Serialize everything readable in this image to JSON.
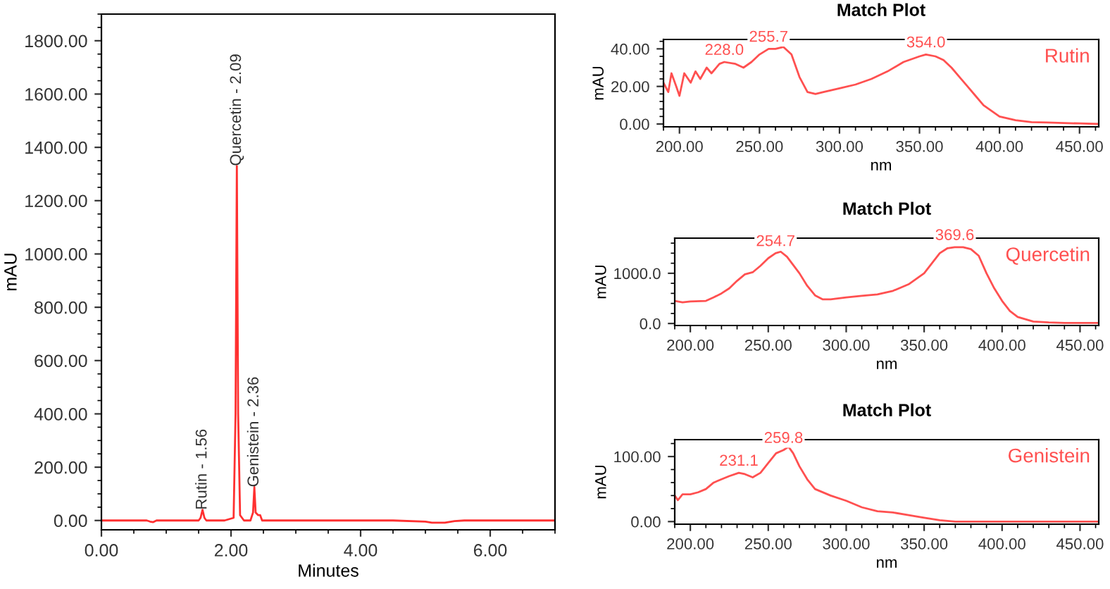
{
  "chart_data": [
    {
      "type": "line",
      "xlabel": "Minutes",
      "ylabel": "mAU",
      "xlim": [
        0,
        7
      ],
      "ylim": [
        -35,
        1900
      ],
      "xticks": [
        {
          "value": 0,
          "label": "0.00"
        },
        {
          "value": 2,
          "label": "2.00"
        },
        {
          "value": 4,
          "label": "4.00"
        },
        {
          "value": 6,
          "label": "6.00"
        }
      ],
      "yticks": [
        {
          "value": 0,
          "label": "0.00"
        },
        {
          "value": 200,
          "label": "200.00"
        },
        {
          "value": 400,
          "label": "400.00"
        },
        {
          "value": 600,
          "label": "600.00"
        },
        {
          "value": 800,
          "label": "800.00"
        },
        {
          "value": 1000,
          "label": "1000.00"
        },
        {
          "value": 1200,
          "label": "1200.00"
        },
        {
          "value": 1400,
          "label": "1400.00"
        },
        {
          "value": 1600,
          "label": "1600.00"
        },
        {
          "value": 1800,
          "label": "1800.00"
        }
      ],
      "x": [
        0,
        0.3,
        0.7,
        0.75,
        0.8,
        0.85,
        0.9,
        1.2,
        1.5,
        1.53,
        1.56,
        1.59,
        1.62,
        1.9,
        2.04,
        2.07,
        2.09,
        2.11,
        2.14,
        2.2,
        2.3,
        2.34,
        2.36,
        2.38,
        2.42,
        2.45,
        2.48,
        2.6,
        3.5,
        4.5,
        5.0,
        5.1,
        5.3,
        5.45,
        5.6,
        6.5,
        7.0
      ],
      "series": [
        {
          "color": "#ff3030",
          "values": [
            0,
            0,
            0,
            -4,
            -6,
            0,
            0,
            0,
            0,
            10,
            40,
            10,
            0,
            0,
            10,
            400,
            1330,
            400,
            20,
            0,
            0,
            30,
            125,
            30,
            20,
            20,
            0,
            0,
            0,
            0,
            -4,
            -8,
            -8,
            -2,
            0,
            0,
            0
          ]
        }
      ],
      "annotations": [
        {
          "text": "Rutin - 1.56",
          "x": 1.56,
          "y": 40
        },
        {
          "text": "Quercetin - 2.09",
          "x": 2.09,
          "y": 1330
        },
        {
          "text": "Genistein - 2.36",
          "x": 2.36,
          "y": 125
        }
      ],
      "grid": false,
      "legend": false,
      "marker": "none",
      "line_style": "solid"
    },
    {
      "type": "line",
      "title": "Match Plot",
      "xlabel": "nm",
      "ylabel": "mAU",
      "xlim": [
        190,
        462
      ],
      "ylim": [
        -1.5,
        45
      ],
      "xticks": [
        {
          "value": 200,
          "label": "200.00"
        },
        {
          "value": 250,
          "label": "250.00"
        },
        {
          "value": 300,
          "label": "300.00"
        },
        {
          "value": 350,
          "label": "350.00"
        },
        {
          "value": 400,
          "label": "400.00"
        },
        {
          "value": 450,
          "label": "450.00"
        }
      ],
      "yticks": [
        {
          "value": 0,
          "label": "0.00"
        },
        {
          "value": 20,
          "label": "20.00"
        },
        {
          "value": 40,
          "label": "40.00"
        }
      ],
      "x": [
        190,
        193,
        195,
        198,
        200,
        203,
        207,
        210,
        213,
        217,
        220,
        225,
        228,
        235,
        240,
        245,
        250,
        255.7,
        260,
        265,
        270,
        275,
        280,
        285,
        290,
        300,
        310,
        320,
        330,
        340,
        350,
        354,
        360,
        365,
        370,
        375,
        380,
        385,
        390,
        395,
        400,
        410,
        420,
        430,
        440,
        450,
        462
      ],
      "series": [
        {
          "name": "Rutin",
          "color": "#ff5050",
          "values": [
            22,
            17,
            27,
            20,
            15,
            27,
            22,
            28,
            24,
            30,
            27,
            32,
            33,
            32,
            30,
            33,
            37,
            40,
            40,
            41,
            37,
            25,
            17,
            16,
            17,
            19,
            21,
            24,
            28,
            33,
            36,
            37,
            36,
            34,
            30,
            25,
            20,
            15,
            10,
            7,
            4,
            2,
            1,
            0.8,
            0.5,
            0.3,
            0
          ]
        }
      ],
      "annotations": [
        {
          "text": "228.0",
          "x": 228,
          "y": 33
        },
        {
          "text": "255.7",
          "x": 255.7,
          "y": 40
        },
        {
          "text": "354.0",
          "x": 354,
          "y": 37
        }
      ],
      "grid": false,
      "legend": false,
      "marker": "none",
      "line_style": "solid"
    },
    {
      "type": "line",
      "title": "Match Plot",
      "xlabel": "nm",
      "ylabel": "mAU",
      "xlim": [
        190,
        462
      ],
      "ylim": [
        -40,
        1700
      ],
      "xticks": [
        {
          "value": 200,
          "label": "200.00"
        },
        {
          "value": 250,
          "label": "250.00"
        },
        {
          "value": 300,
          "label": "300.00"
        },
        {
          "value": 350,
          "label": "350.00"
        },
        {
          "value": 400,
          "label": "400.00"
        },
        {
          "value": 450,
          "label": "450.00"
        }
      ],
      "yticks": [
        {
          "value": 0,
          "label": "0.0"
        },
        {
          "value": 1000,
          "label": "1000.0"
        }
      ],
      "x": [
        190,
        195,
        200,
        210,
        215,
        220,
        225,
        230,
        235,
        240,
        245,
        250,
        254.7,
        258,
        262,
        270,
        275,
        280,
        285,
        290,
        300,
        310,
        320,
        330,
        340,
        350,
        355,
        360,
        365,
        369.6,
        375,
        380,
        385,
        390,
        395,
        400,
        405,
        410,
        420,
        430,
        440,
        462
      ],
      "series": [
        {
          "name": "Quercetin",
          "color": "#ff5050",
          "values": [
            450,
            420,
            440,
            450,
            520,
            600,
            700,
            850,
            980,
            1020,
            1150,
            1300,
            1400,
            1430,
            1330,
            1000,
            750,
            560,
            480,
            480,
            520,
            550,
            580,
            650,
            780,
            1000,
            1200,
            1400,
            1500,
            1520,
            1520,
            1480,
            1350,
            1000,
            700,
            450,
            250,
            130,
            40,
            20,
            10,
            10
          ]
        }
      ],
      "annotations": [
        {
          "text": "254.7",
          "x": 254.7,
          "y": 1400
        },
        {
          "text": "369.6",
          "x": 369.6,
          "y": 1520
        }
      ],
      "grid": false,
      "legend": false,
      "marker": "none",
      "line_style": "solid"
    },
    {
      "type": "line",
      "title": "Match Plot",
      "xlabel": "nm",
      "ylabel": "mAU",
      "xlim": [
        190,
        462
      ],
      "ylim": [
        -4,
        126
      ],
      "xticks": [
        {
          "value": 200,
          "label": "200.00"
        },
        {
          "value": 250,
          "label": "250.00"
        },
        {
          "value": 300,
          "label": "300.00"
        },
        {
          "value": 350,
          "label": "350.00"
        },
        {
          "value": 400,
          "label": "400.00"
        },
        {
          "value": 450,
          "label": "450.00"
        }
      ],
      "yticks": [
        {
          "value": 0,
          "label": "0.00"
        },
        {
          "value": 100,
          "label": "100.00"
        }
      ],
      "x": [
        190,
        192,
        195,
        200,
        205,
        210,
        215,
        220,
        225,
        231.1,
        235,
        240,
        245,
        250,
        255,
        259.8,
        263,
        266,
        270,
        275,
        280,
        290,
        300,
        310,
        320,
        330,
        340,
        350,
        360,
        370,
        400,
        462
      ],
      "series": [
        {
          "name": "Genistein",
          "color": "#ff5050",
          "values": [
            40,
            33,
            42,
            42,
            45,
            50,
            60,
            65,
            70,
            75,
            73,
            68,
            75,
            90,
            105,
            110,
            115,
            105,
            85,
            65,
            50,
            40,
            32,
            22,
            16,
            14,
            10,
            6,
            2,
            0,
            0,
            0
          ]
        }
      ],
      "annotations": [
        {
          "text": "231.1",
          "x": 231.1,
          "y": 75
        },
        {
          "text": "259.8",
          "x": 259.8,
          "y": 110
        }
      ],
      "grid": false,
      "legend": false,
      "marker": "none",
      "line_style": "solid"
    }
  ]
}
